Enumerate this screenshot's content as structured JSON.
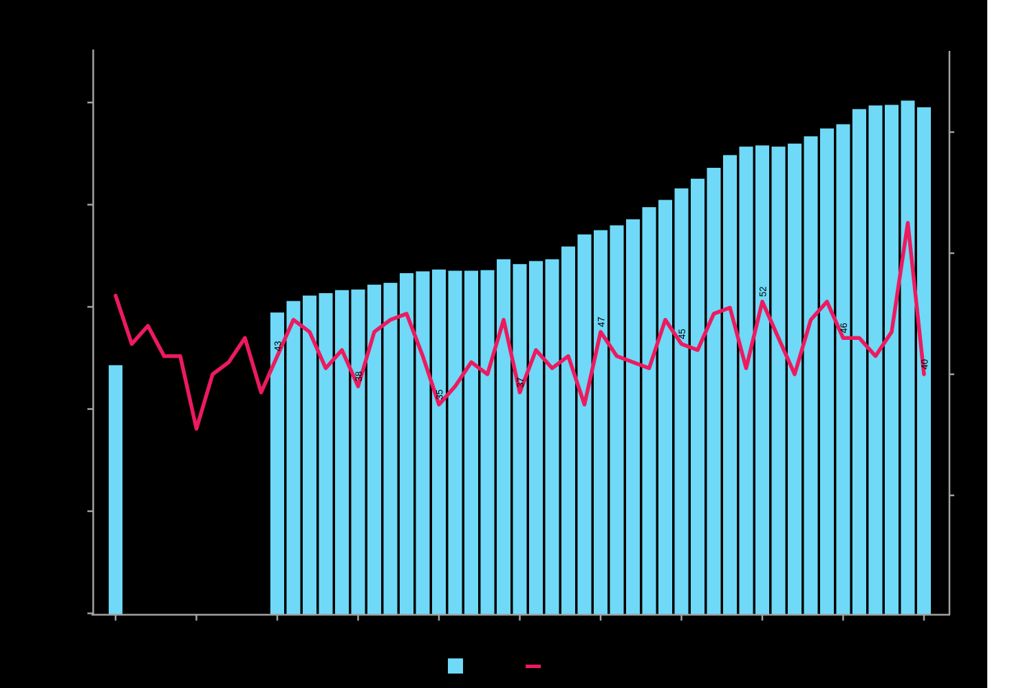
{
  "colors": {
    "background": "#000000",
    "page_margin": "#ffffff",
    "bar": "#6FD9F7",
    "line": "#ED1A5F",
    "axis": "#A3A3A3",
    "data_label": "#000000"
  },
  "chart_data": {
    "type": "combo",
    "num_categories": 51,
    "category_labels_visible": false,
    "series": [
      {
        "name": "bar-series",
        "type": "bar",
        "color_key": "bar",
        "values": [
          41.5,
          null,
          null,
          null,
          null,
          null,
          null,
          null,
          null,
          null,
          50.2,
          52.1,
          53.0,
          53.4,
          53.9,
          54.0,
          54.8,
          55.1,
          56.7,
          57.0,
          57.3,
          57.1,
          57.1,
          57.2,
          59.0,
          58.2,
          58.7,
          59.0,
          61.1,
          63.1,
          63.8,
          64.6,
          65.6,
          67.6,
          68.8,
          70.7,
          72.3,
          74.1,
          76.2,
          77.6,
          77.8,
          77.6,
          78.1,
          79.3,
          80.6,
          81.3,
          83.8,
          84.4,
          84.5,
          85.2,
          84.1
        ]
      },
      {
        "name": "line-series",
        "type": "line",
        "color_key": "line",
        "values": [
          53,
          45,
          48,
          43,
          43,
          31,
          40,
          42,
          46,
          37,
          43,
          49,
          47,
          41,
          44,
          38,
          47,
          49,
          50,
          43,
          35,
          38,
          42,
          40,
          49,
          37,
          44,
          41,
          43,
          35,
          47,
          43,
          42,
          41,
          49,
          45,
          44,
          50,
          51,
          41,
          52,
          46,
          40,
          49,
          52,
          46,
          46,
          43,
          47,
          65,
          40
        ]
      }
    ],
    "data_labels": {
      "series": "line-series",
      "indices": [
        10,
        15,
        20,
        25,
        30,
        35,
        40,
        45,
        50
      ],
      "labels": [
        "43",
        "38",
        "35",
        "37",
        "47",
        "45",
        "52",
        "46",
        "40"
      ]
    },
    "axes": {
      "left": {
        "tick_count": 6,
        "labels_visible": false
      },
      "right": {
        "tick_count": 4,
        "labels_visible": false
      },
      "bottom": {
        "tick_count": 11,
        "tick_every_n_categories": 5,
        "labels_visible": false
      }
    },
    "legend": {
      "items": [
        {
          "swatch": "square",
          "color_key": "bar"
        },
        {
          "swatch": "dash",
          "color_key": "line"
        }
      ]
    }
  }
}
